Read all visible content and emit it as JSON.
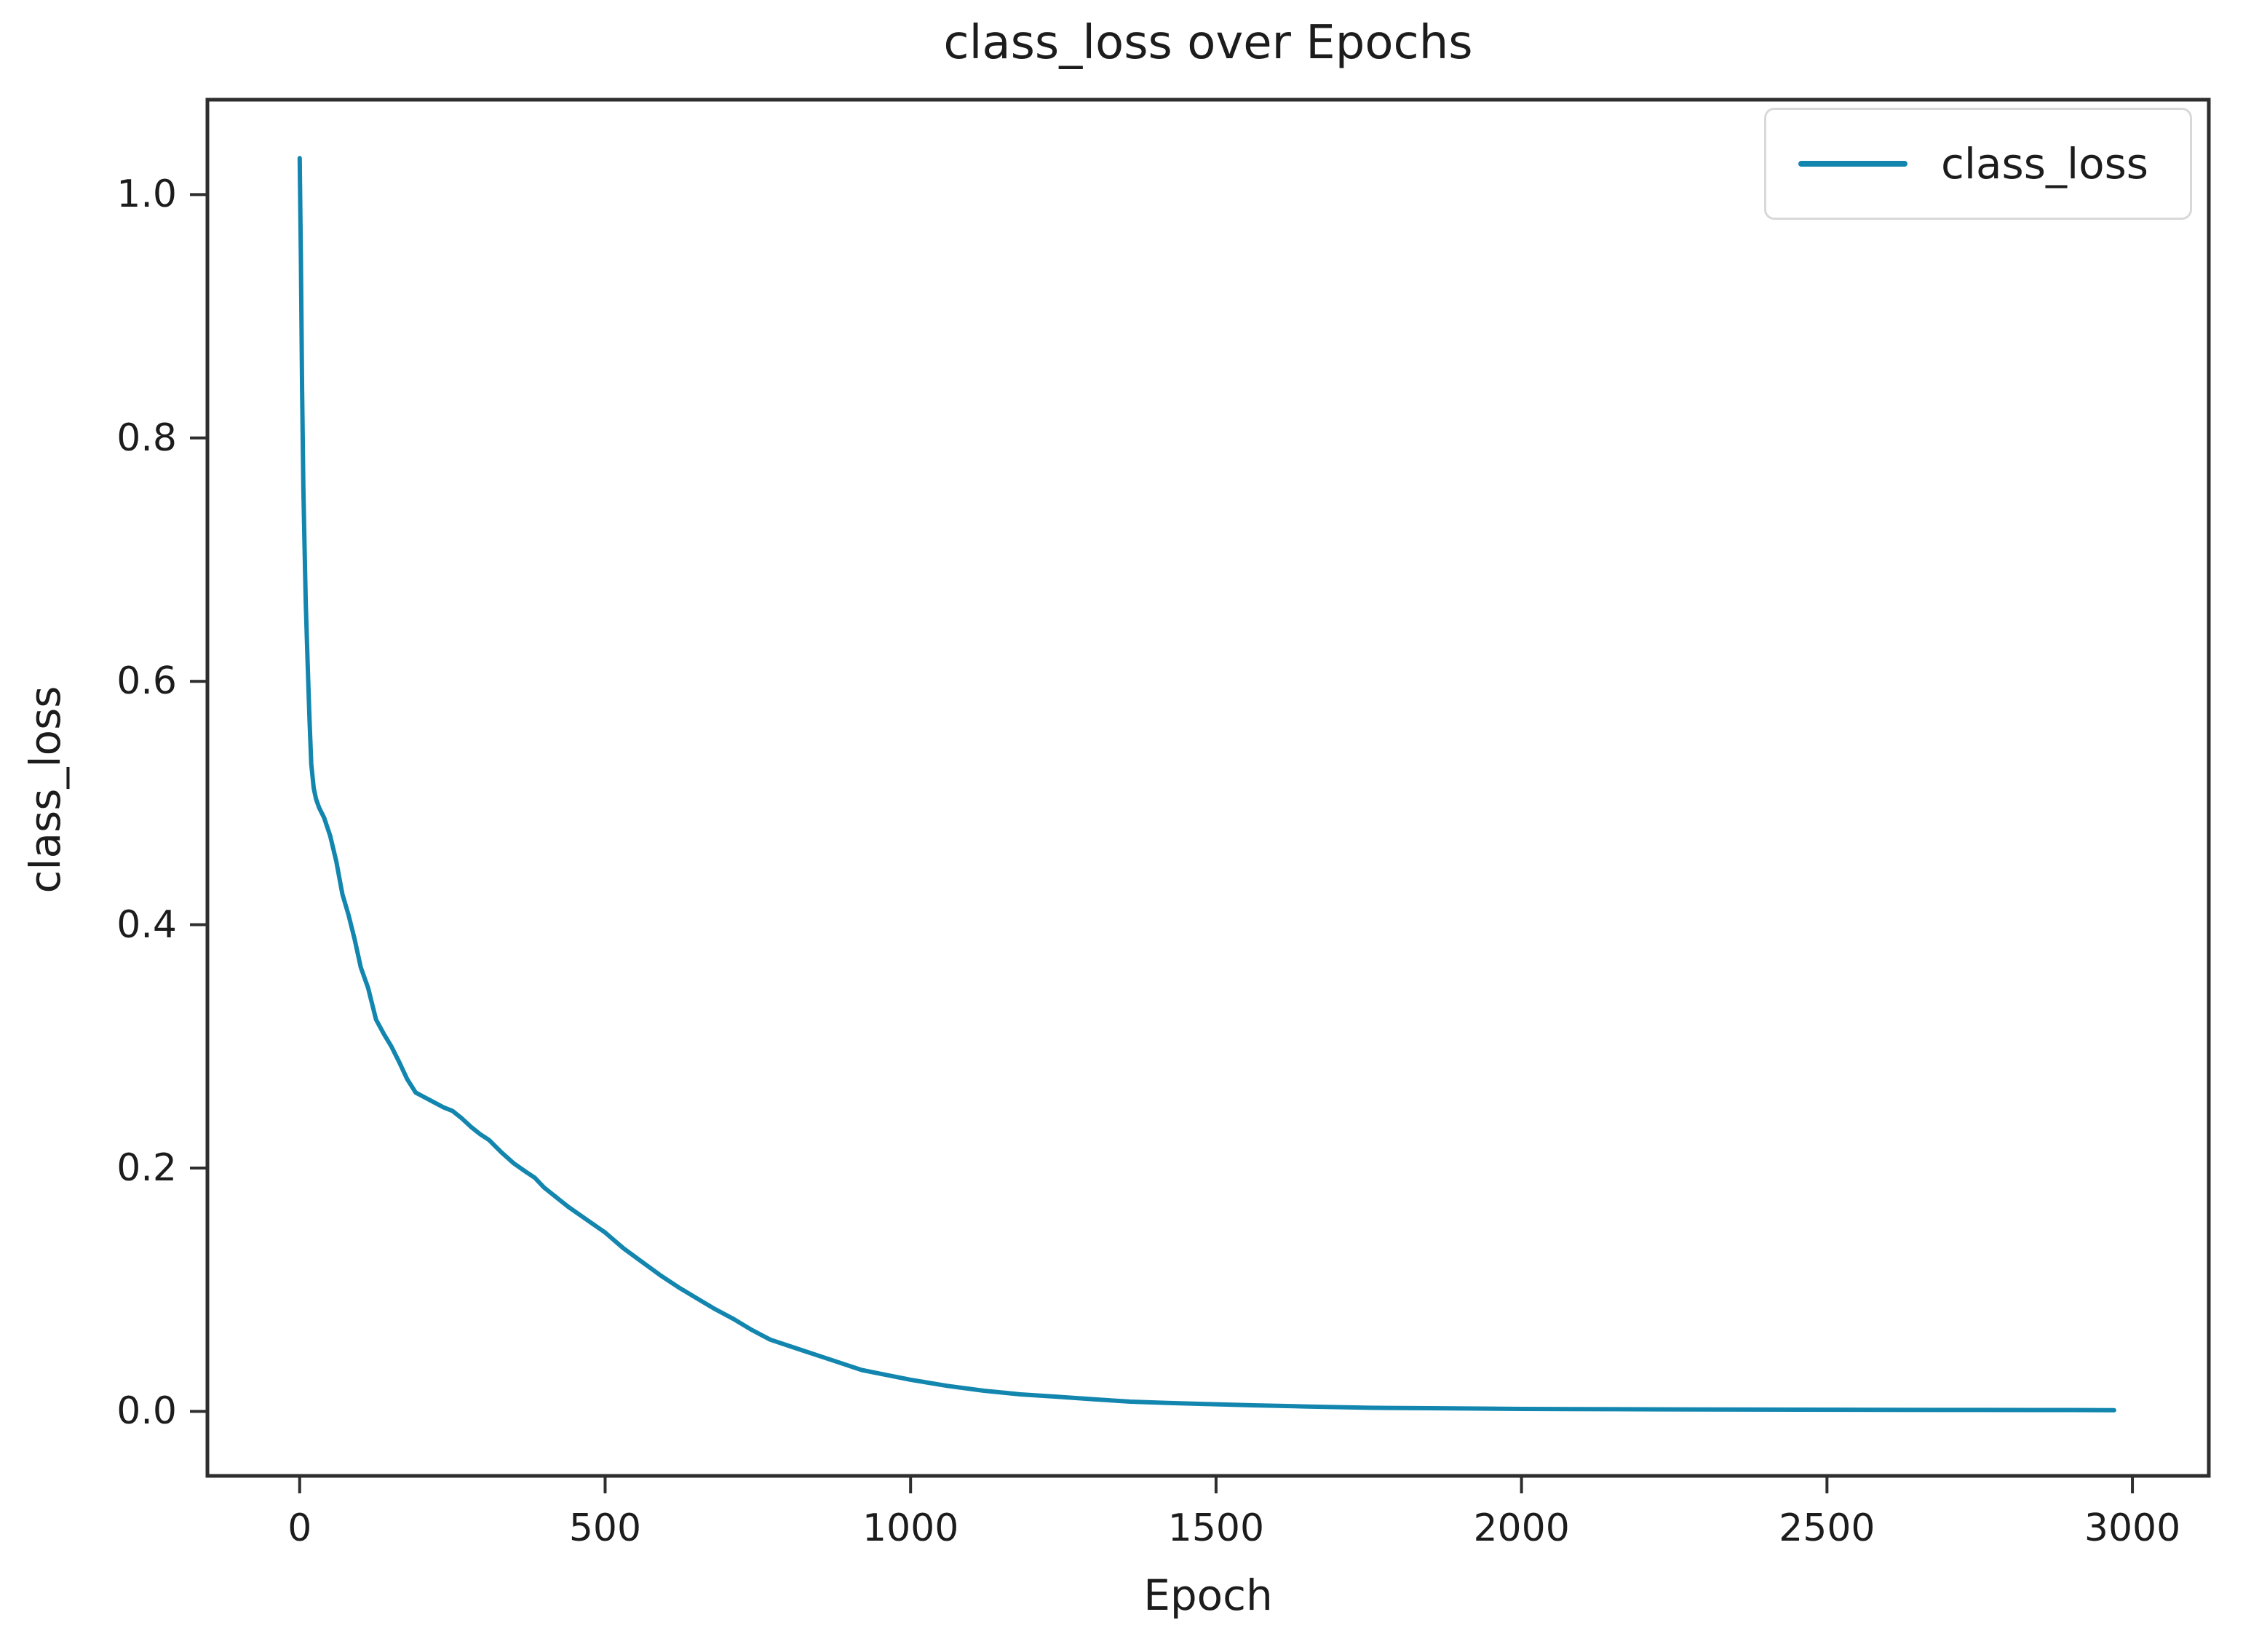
{
  "figure": {
    "title": "class_loss over Epochs",
    "xlabel": "Epoch",
    "ylabel": "class_loss",
    "legend": {
      "label": "class_loss"
    },
    "colors": {
      "line": "#1286ae",
      "text": "#1c1c1c",
      "spine": "#2e2e2e",
      "legend_border": "#d8d8d8",
      "background": "#ffffff"
    }
  },
  "chart_data": {
    "type": "line",
    "title": "class_loss over Epochs",
    "xlabel": "Epoch",
    "ylabel": "class_loss",
    "legend_entries": [
      "class_loss"
    ],
    "legend_position": "upper right",
    "grid": false,
    "xlim": [
      -151,
      3125
    ],
    "ylim": [
      -0.053,
      1.078
    ],
    "x_ticks": [
      0,
      500,
      1000,
      1500,
      2000,
      2500,
      3000
    ],
    "y_ticks": [
      0.0,
      0.2,
      0.4,
      0.6,
      0.8,
      1.0
    ],
    "series": [
      {
        "name": "class_loss",
        "color": "#1286ae",
        "points": [
          [
            0,
            1.03
          ],
          [
            2,
            0.95
          ],
          [
            4,
            0.84
          ],
          [
            6,
            0.76
          ],
          [
            8,
            0.71
          ],
          [
            10,
            0.665
          ],
          [
            13,
            0.615
          ],
          [
            16,
            0.57
          ],
          [
            19,
            0.532
          ],
          [
            23,
            0.512
          ],
          [
            27,
            0.503
          ],
          [
            32,
            0.496
          ],
          [
            40,
            0.488
          ],
          [
            50,
            0.473
          ],
          [
            60,
            0.452
          ],
          [
            70,
            0.425
          ],
          [
            80,
            0.408
          ],
          [
            90,
            0.388
          ],
          [
            100,
            0.365
          ],
          [
            112,
            0.348
          ],
          [
            125,
            0.322
          ],
          [
            138,
            0.31
          ],
          [
            150,
            0.3
          ],
          [
            163,
            0.287
          ],
          [
            176,
            0.273
          ],
          [
            190,
            0.262
          ],
          [
            205,
            0.258
          ],
          [
            220,
            0.254
          ],
          [
            235,
            0.25
          ],
          [
            250,
            0.247
          ],
          [
            265,
            0.241
          ],
          [
            280,
            0.234
          ],
          [
            295,
            0.228
          ],
          [
            310,
            0.223
          ],
          [
            330,
            0.213
          ],
          [
            350,
            0.204
          ],
          [
            370,
            0.197
          ],
          [
            385,
            0.192
          ],
          [
            400,
            0.184
          ],
          [
            420,
            0.176
          ],
          [
            440,
            0.168
          ],
          [
            460,
            0.161
          ],
          [
            480,
            0.154
          ],
          [
            500,
            0.147
          ],
          [
            530,
            0.134
          ],
          [
            560,
            0.123
          ],
          [
            590,
            0.112
          ],
          [
            620,
            0.102
          ],
          [
            650,
            0.093
          ],
          [
            680,
            0.084
          ],
          [
            710,
            0.076
          ],
          [
            740,
            0.067
          ],
          [
            770,
            0.059
          ],
          [
            800,
            0.054
          ],
          [
            830,
            0.049
          ],
          [
            860,
            0.044
          ],
          [
            890,
            0.039
          ],
          [
            920,
            0.034
          ],
          [
            950,
            0.031
          ],
          [
            1000,
            0.026
          ],
          [
            1060,
            0.021
          ],
          [
            1120,
            0.017
          ],
          [
            1180,
            0.014
          ],
          [
            1240,
            0.012
          ],
          [
            1300,
            0.01
          ],
          [
            1360,
            0.008
          ],
          [
            1420,
            0.007
          ],
          [
            1490,
            0.006
          ],
          [
            1560,
            0.005
          ],
          [
            1650,
            0.004
          ],
          [
            1750,
            0.003
          ],
          [
            1850,
            0.0026
          ],
          [
            2000,
            0.002
          ],
          [
            2150,
            0.0018
          ],
          [
            2300,
            0.0016
          ],
          [
            2450,
            0.0014
          ],
          [
            2600,
            0.0013
          ],
          [
            2750,
            0.0012
          ],
          [
            2900,
            0.0011
          ],
          [
            2970,
            0.001
          ]
        ]
      }
    ]
  }
}
